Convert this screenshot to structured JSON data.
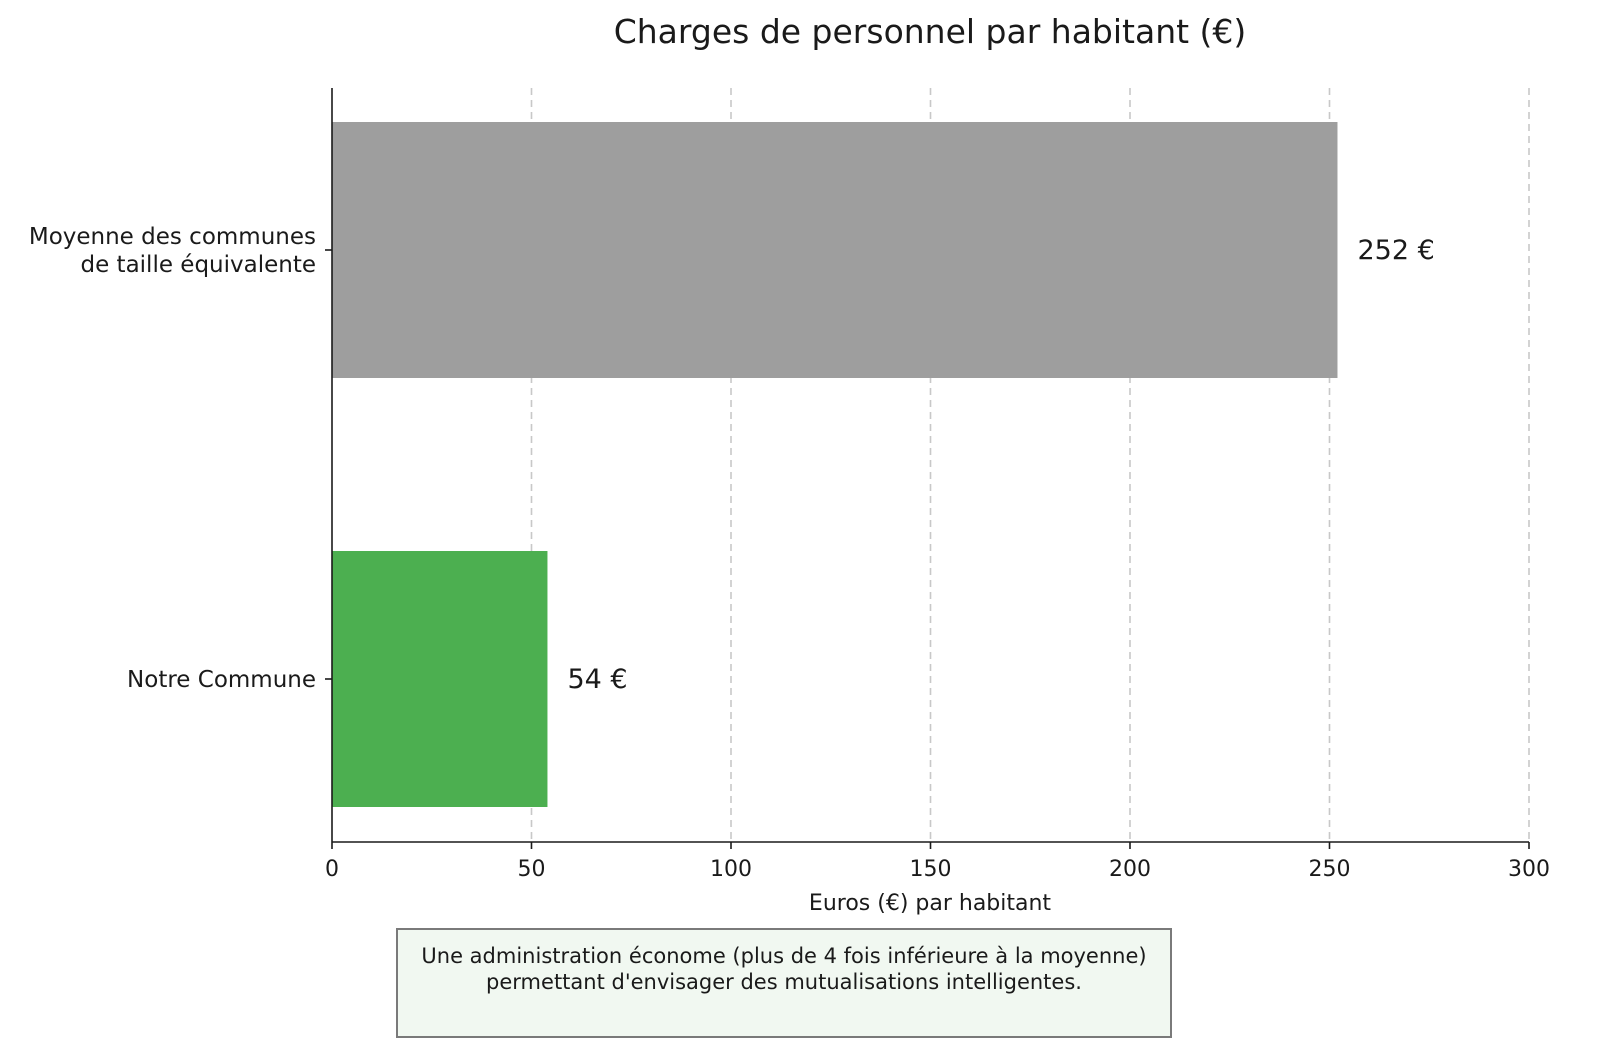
{
  "chart_data": {
    "type": "bar",
    "orientation": "horizontal",
    "title": "Charges de personnel par habitant (€)",
    "xlabel": "Euros (€) par habitant",
    "ylabel": "",
    "categories": [
      [
        "Moyenne des communes",
        "de taille équivalente"
      ],
      [
        "Notre Commune"
      ]
    ],
    "values": [
      252,
      54
    ],
    "value_labels": [
      "252 €",
      "54 €"
    ],
    "colors": [
      "#9e9e9e",
      "#4caf50"
    ],
    "xlim": [
      0,
      300
    ],
    "xticks": [
      0,
      50,
      100,
      150,
      200,
      250,
      300
    ],
    "xtick_labels": [
      "0",
      "50",
      "100",
      "150",
      "200",
      "250",
      "300"
    ],
    "grid": "vertical dashed",
    "legend": "none"
  },
  "note": {
    "lines": [
      "Une administration économe (plus de 4 fois inférieure à la moyenne)",
      "permettant d'envisager des mutualisations intelligentes."
    ]
  }
}
